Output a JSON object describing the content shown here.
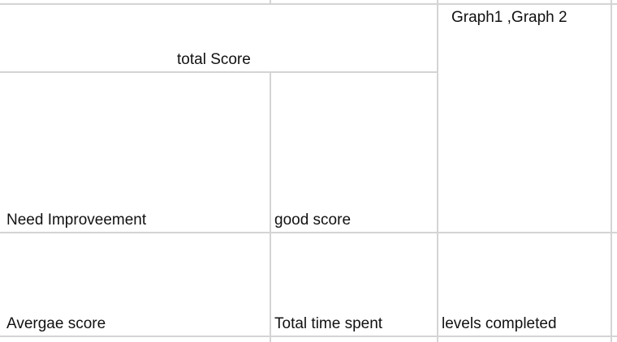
{
  "sheet": {
    "cells": {
      "total_score": "total Score",
      "graphs": "Graph1 ,Graph 2",
      "need_improvement": "Need Improveement",
      "good_score": "good score",
      "average_score": "Avergae score",
      "total_time_spent": "Total time spent",
      "levels_completed": "levels completed"
    },
    "gridline_color": "#d4d4d4"
  }
}
